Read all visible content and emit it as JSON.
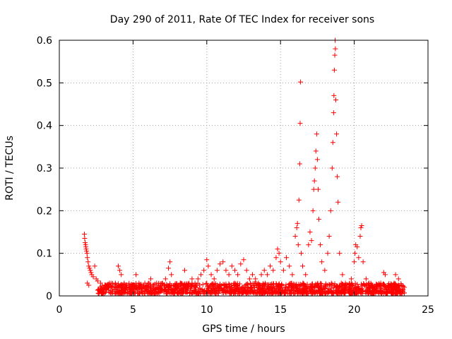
{
  "chart_data": {
    "type": "scatter",
    "title": "Day 290 of 2011, Rate Of TEC Index for receiver sons",
    "xlabel": "GPS time / hours",
    "ylabel": "ROTI / TECUs",
    "xlim": [
      0,
      25
    ],
    "ylim": [
      0,
      0.6
    ],
    "x_ticks": [
      "0",
      "5",
      "10",
      "15",
      "20",
      "25"
    ],
    "y_ticks": [
      "0",
      "0.1",
      "0.2",
      "0.3",
      "0.4",
      "0.5",
      "0.6"
    ],
    "grid": true,
    "marker": "plus",
    "color": "#ff0000",
    "points": [
      [
        1.7,
        0.145
      ],
      [
        1.72,
        0.135
      ],
      [
        1.75,
        0.125
      ],
      [
        1.78,
        0.12
      ],
      [
        1.8,
        0.115
      ],
      [
        1.82,
        0.11
      ],
      [
        1.85,
        0.105
      ],
      [
        1.88,
        0.1
      ],
      [
        1.9,
        0.09
      ],
      [
        1.95,
        0.08
      ],
      [
        2.0,
        0.07
      ],
      [
        2.05,
        0.065
      ],
      [
        2.1,
        0.06
      ],
      [
        2.15,
        0.055
      ],
      [
        2.2,
        0.05
      ],
      [
        2.3,
        0.045
      ],
      [
        2.4,
        0.07
      ],
      [
        2.5,
        0.04
      ],
      [
        1.9,
        0.03
      ],
      [
        2.0,
        0.025
      ],
      [
        2.6,
        0.035
      ],
      [
        2.8,
        0.03
      ],
      [
        3.0,
        0.02
      ],
      [
        3.2,
        0.025
      ],
      [
        3.4,
        0.03
      ],
      [
        3.6,
        0.02
      ],
      [
        3.8,
        0.03
      ],
      [
        4.0,
        0.07
      ],
      [
        4.1,
        0.06
      ],
      [
        4.2,
        0.05
      ],
      [
        4.4,
        0.03
      ],
      [
        4.6,
        0.02
      ],
      [
        4.8,
        0.015
      ],
      [
        5.0,
        0.02
      ],
      [
        5.2,
        0.05
      ],
      [
        5.4,
        0.03
      ],
      [
        5.6,
        0.02
      ],
      [
        5.8,
        0.03
      ],
      [
        6.0,
        0.02
      ],
      [
        6.2,
        0.04
      ],
      [
        6.4,
        0.025
      ],
      [
        6.6,
        0.03
      ],
      [
        6.8,
        0.02
      ],
      [
        7.0,
        0.03
      ],
      [
        7.2,
        0.04
      ],
      [
        7.4,
        0.065
      ],
      [
        7.5,
        0.08
      ],
      [
        7.6,
        0.05
      ],
      [
        7.8,
        0.025
      ],
      [
        8.0,
        0.02
      ],
      [
        8.2,
        0.03
      ],
      [
        8.5,
        0.06
      ],
      [
        8.8,
        0.03
      ],
      [
        9.0,
        0.04
      ],
      [
        9.2,
        0.03
      ],
      [
        9.4,
        0.04
      ],
      [
        9.6,
        0.05
      ],
      [
        9.8,
        0.06
      ],
      [
        10.0,
        0.085
      ],
      [
        10.1,
        0.07
      ],
      [
        10.3,
        0.05
      ],
      [
        10.5,
        0.04
      ],
      [
        10.7,
        0.06
      ],
      [
        10.9,
        0.075
      ],
      [
        11.1,
        0.08
      ],
      [
        11.3,
        0.06
      ],
      [
        11.5,
        0.05
      ],
      [
        11.7,
        0.07
      ],
      [
        11.9,
        0.06
      ],
      [
        12.1,
        0.05
      ],
      [
        12.3,
        0.075
      ],
      [
        12.5,
        0.085
      ],
      [
        12.7,
        0.06
      ],
      [
        12.9,
        0.04
      ],
      [
        13.1,
        0.05
      ],
      [
        13.3,
        0.04
      ],
      [
        13.5,
        0.03
      ],
      [
        13.7,
        0.05
      ],
      [
        13.9,
        0.06
      ],
      [
        14.1,
        0.05
      ],
      [
        14.3,
        0.07
      ],
      [
        14.5,
        0.06
      ],
      [
        14.7,
        0.09
      ],
      [
        14.8,
        0.11
      ],
      [
        14.9,
        0.1
      ],
      [
        15.0,
        0.08
      ],
      [
        15.2,
        0.06
      ],
      [
        15.4,
        0.09
      ],
      [
        15.6,
        0.07
      ],
      [
        15.8,
        0.05
      ],
      [
        16.0,
        0.14
      ],
      [
        16.1,
        0.16
      ],
      [
        16.15,
        0.17
      ],
      [
        16.2,
        0.12
      ],
      [
        16.25,
        0.225
      ],
      [
        16.3,
        0.31
      ],
      [
        16.33,
        0.405
      ],
      [
        16.36,
        0.502
      ],
      [
        16.4,
        0.1
      ],
      [
        16.5,
        0.07
      ],
      [
        16.7,
        0.05
      ],
      [
        16.9,
        0.12
      ],
      [
        17.0,
        0.15
      ],
      [
        17.1,
        0.13
      ],
      [
        17.2,
        0.2
      ],
      [
        17.25,
        0.25
      ],
      [
        17.3,
        0.27
      ],
      [
        17.35,
        0.3
      ],
      [
        17.4,
        0.34
      ],
      [
        17.45,
        0.38
      ],
      [
        17.5,
        0.32
      ],
      [
        17.55,
        0.25
      ],
      [
        17.6,
        0.18
      ],
      [
        17.7,
        0.12
      ],
      [
        17.8,
        0.08
      ],
      [
        18.0,
        0.06
      ],
      [
        18.2,
        0.1
      ],
      [
        18.3,
        0.14
      ],
      [
        18.4,
        0.2
      ],
      [
        18.5,
        0.3
      ],
      [
        18.55,
        0.36
      ],
      [
        18.6,
        0.43
      ],
      [
        18.62,
        0.47
      ],
      [
        18.65,
        0.53
      ],
      [
        18.68,
        0.565
      ],
      [
        18.7,
        0.6
      ],
      [
        18.72,
        0.58
      ],
      [
        18.75,
        0.46
      ],
      [
        18.8,
        0.38
      ],
      [
        18.85,
        0.28
      ],
      [
        18.9,
        0.22
      ],
      [
        19.0,
        0.1
      ],
      [
        19.2,
        0.05
      ],
      [
        19.4,
        0.03
      ],
      [
        19.6,
        0.02
      ],
      [
        19.8,
        0.04
      ],
      [
        20.0,
        0.08
      ],
      [
        20.05,
        0.1
      ],
      [
        20.1,
        0.12
      ],
      [
        20.2,
        0.115
      ],
      [
        20.3,
        0.09
      ],
      [
        20.4,
        0.14
      ],
      [
        20.45,
        0.16
      ],
      [
        20.5,
        0.165
      ],
      [
        20.6,
        0.08
      ],
      [
        20.8,
        0.04
      ],
      [
        21.0,
        0.03
      ],
      [
        21.2,
        0.02
      ],
      [
        21.5,
        0.025
      ],
      [
        21.8,
        0.03
      ],
      [
        22.0,
        0.055
      ],
      [
        22.1,
        0.05
      ],
      [
        22.3,
        0.025
      ],
      [
        22.5,
        0.02
      ],
      [
        22.7,
        0.03
      ],
      [
        22.8,
        0.05
      ],
      [
        23.0,
        0.04
      ],
      [
        23.2,
        0.025
      ],
      [
        23.4,
        0.02
      ]
    ],
    "dense_band": {
      "x_from": 2.6,
      "x_to": 23.4,
      "y_from": 0.005,
      "y_to": 0.03,
      "count": 1400
    }
  }
}
